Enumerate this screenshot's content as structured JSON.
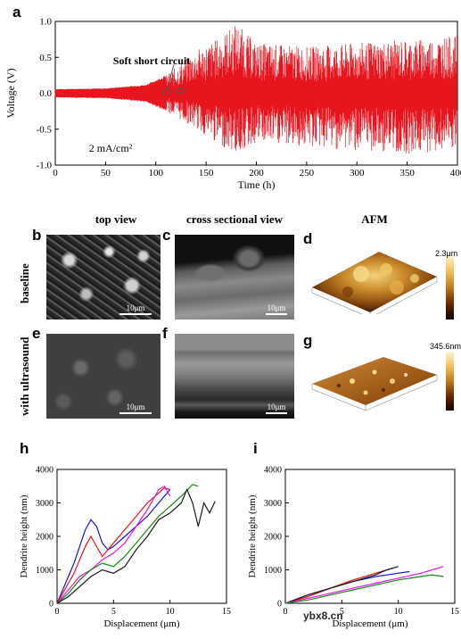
{
  "panels": {
    "a": "a",
    "b": "b",
    "c": "c",
    "d": "d",
    "e": "e",
    "f": "f",
    "g": "g",
    "h": "h",
    "i": "i"
  },
  "headers": {
    "top_view": "top view",
    "cross": "cross sectional view",
    "afm": "AFM"
  },
  "rows": {
    "baseline": "baseline",
    "ultrasound": "with ultrasound"
  },
  "scale_labels": {
    "b": "10μm",
    "c": "10μm",
    "e": "10μm",
    "f": "10μm"
  },
  "afm": {
    "d_max": "2.3μm",
    "g_max": "345.6nm"
  },
  "watermark": "ybx8.cn",
  "chart_data": [
    {
      "id": "a",
      "type": "line",
      "xlabel": "Time (h)",
      "ylabel": "Voltage (V)",
      "xlim": [
        0,
        400
      ],
      "ylim": [
        -1.0,
        1.0
      ],
      "xticks": [
        0,
        50,
        100,
        150,
        200,
        250,
        300,
        350,
        400
      ],
      "yticks": [
        -1.0,
        -0.5,
        0.0,
        0.5,
        1.0
      ],
      "color": "#e8141e",
      "annotations": [
        "Soft short circuit",
        "2 mA/cm²"
      ],
      "envelope_x": [
        0,
        50,
        90,
        110,
        140,
        160,
        180,
        200,
        250,
        300,
        350,
        400
      ],
      "envelope_upper": [
        0.06,
        0.07,
        0.12,
        0.25,
        0.6,
        0.75,
        0.98,
        0.7,
        0.65,
        0.7,
        0.75,
        0.8
      ],
      "envelope_lower": [
        -0.06,
        -0.07,
        -0.12,
        -0.25,
        -0.5,
        -0.7,
        -0.85,
        -0.7,
        -0.75,
        -0.8,
        -0.85,
        -0.8
      ]
    },
    {
      "id": "h",
      "type": "line",
      "xlabel": "Displacement (μm)",
      "ylabel": "Dendrite height (nm)",
      "xlim": [
        0,
        15
      ],
      "ylim": [
        0,
        4000
      ],
      "xticks": [
        0,
        5,
        10,
        15
      ],
      "yticks": [
        0,
        1000,
        2000,
        3000,
        4000
      ],
      "series": [
        {
          "color": "#1414e6",
          "x": [
            0,
            0.5,
            1,
            1.5,
            2,
            2.5,
            3,
            3.5,
            4,
            4.5,
            5,
            6,
            7,
            8,
            9,
            10
          ],
          "y": [
            0,
            400,
            800,
            1200,
            1700,
            2200,
            2500,
            2300,
            1800,
            1600,
            1700,
            2000,
            2300,
            2600,
            3000,
            3400
          ]
        },
        {
          "color": "#e61414",
          "x": [
            0,
            0.5,
            1,
            1.5,
            2,
            2.5,
            3,
            3.5,
            4,
            5,
            6,
            7,
            8,
            9,
            9.5,
            10
          ],
          "y": [
            0,
            300,
            600,
            900,
            1300,
            1700,
            2000,
            1700,
            1400,
            1800,
            2200,
            2600,
            3000,
            3300,
            3450,
            3400
          ]
        },
        {
          "color": "#e614e6",
          "x": [
            0,
            1,
            2,
            3,
            4,
            5,
            6,
            7,
            8,
            9,
            9.5,
            10
          ],
          "y": [
            0,
            400,
            800,
            1000,
            1300,
            1500,
            1800,
            2300,
            2800,
            3400,
            3500,
            3200
          ]
        },
        {
          "color": "#148a14",
          "x": [
            0,
            1,
            2,
            3,
            4,
            5,
            6,
            7,
            8,
            9,
            10,
            11,
            12,
            12.5
          ],
          "y": [
            0,
            300,
            700,
            1000,
            1200,
            1100,
            1400,
            1800,
            2200,
            2600,
            2900,
            3200,
            3550,
            3500
          ]
        },
        {
          "color": "#1a1a1a",
          "x": [
            0,
            1,
            2,
            3,
            4,
            5,
            6,
            7,
            8,
            9,
            10,
            11,
            11.5,
            12,
            12.5,
            13,
            13.5,
            14
          ],
          "y": [
            0,
            200,
            500,
            800,
            1000,
            900,
            1100,
            1600,
            2000,
            2500,
            2700,
            3000,
            3400,
            3000,
            2300,
            3000,
            2700,
            3050
          ]
        }
      ]
    },
    {
      "id": "i",
      "type": "line",
      "xlabel": "Displacement (μm)",
      "ylabel": "Dendrite height (nm)",
      "xlim": [
        0,
        15
      ],
      "ylim": [
        0,
        4000
      ],
      "xticks": [
        0,
        5,
        10,
        15
      ],
      "yticks": [
        0,
        1000,
        2000,
        3000,
        4000
      ],
      "series": [
        {
          "color": "#1414e6",
          "x": [
            0,
            2,
            4,
            6,
            8,
            10,
            11
          ],
          "y": [
            0,
            250,
            450,
            650,
            800,
            900,
            950
          ]
        },
        {
          "color": "#e61414",
          "x": [
            0,
            2,
            4,
            6,
            8,
            9.5
          ],
          "y": [
            0,
            200,
            450,
            700,
            900,
            1050
          ]
        },
        {
          "color": "#1a1a1a",
          "x": [
            0,
            2,
            4,
            6,
            8,
            9,
            10
          ],
          "y": [
            0,
            250,
            450,
            650,
            850,
            1000,
            1100
          ]
        },
        {
          "color": "#e614e6",
          "x": [
            0,
            2,
            4,
            6,
            8,
            10,
            12,
            13,
            14
          ],
          "y": [
            0,
            150,
            300,
            450,
            600,
            750,
            900,
            1000,
            1100
          ]
        },
        {
          "color": "#148a14",
          "x": [
            0,
            2,
            4,
            6,
            8,
            10,
            12,
            13,
            14
          ],
          "y": [
            0,
            100,
            250,
            400,
            550,
            700,
            800,
            850,
            800
          ]
        }
      ]
    }
  ]
}
